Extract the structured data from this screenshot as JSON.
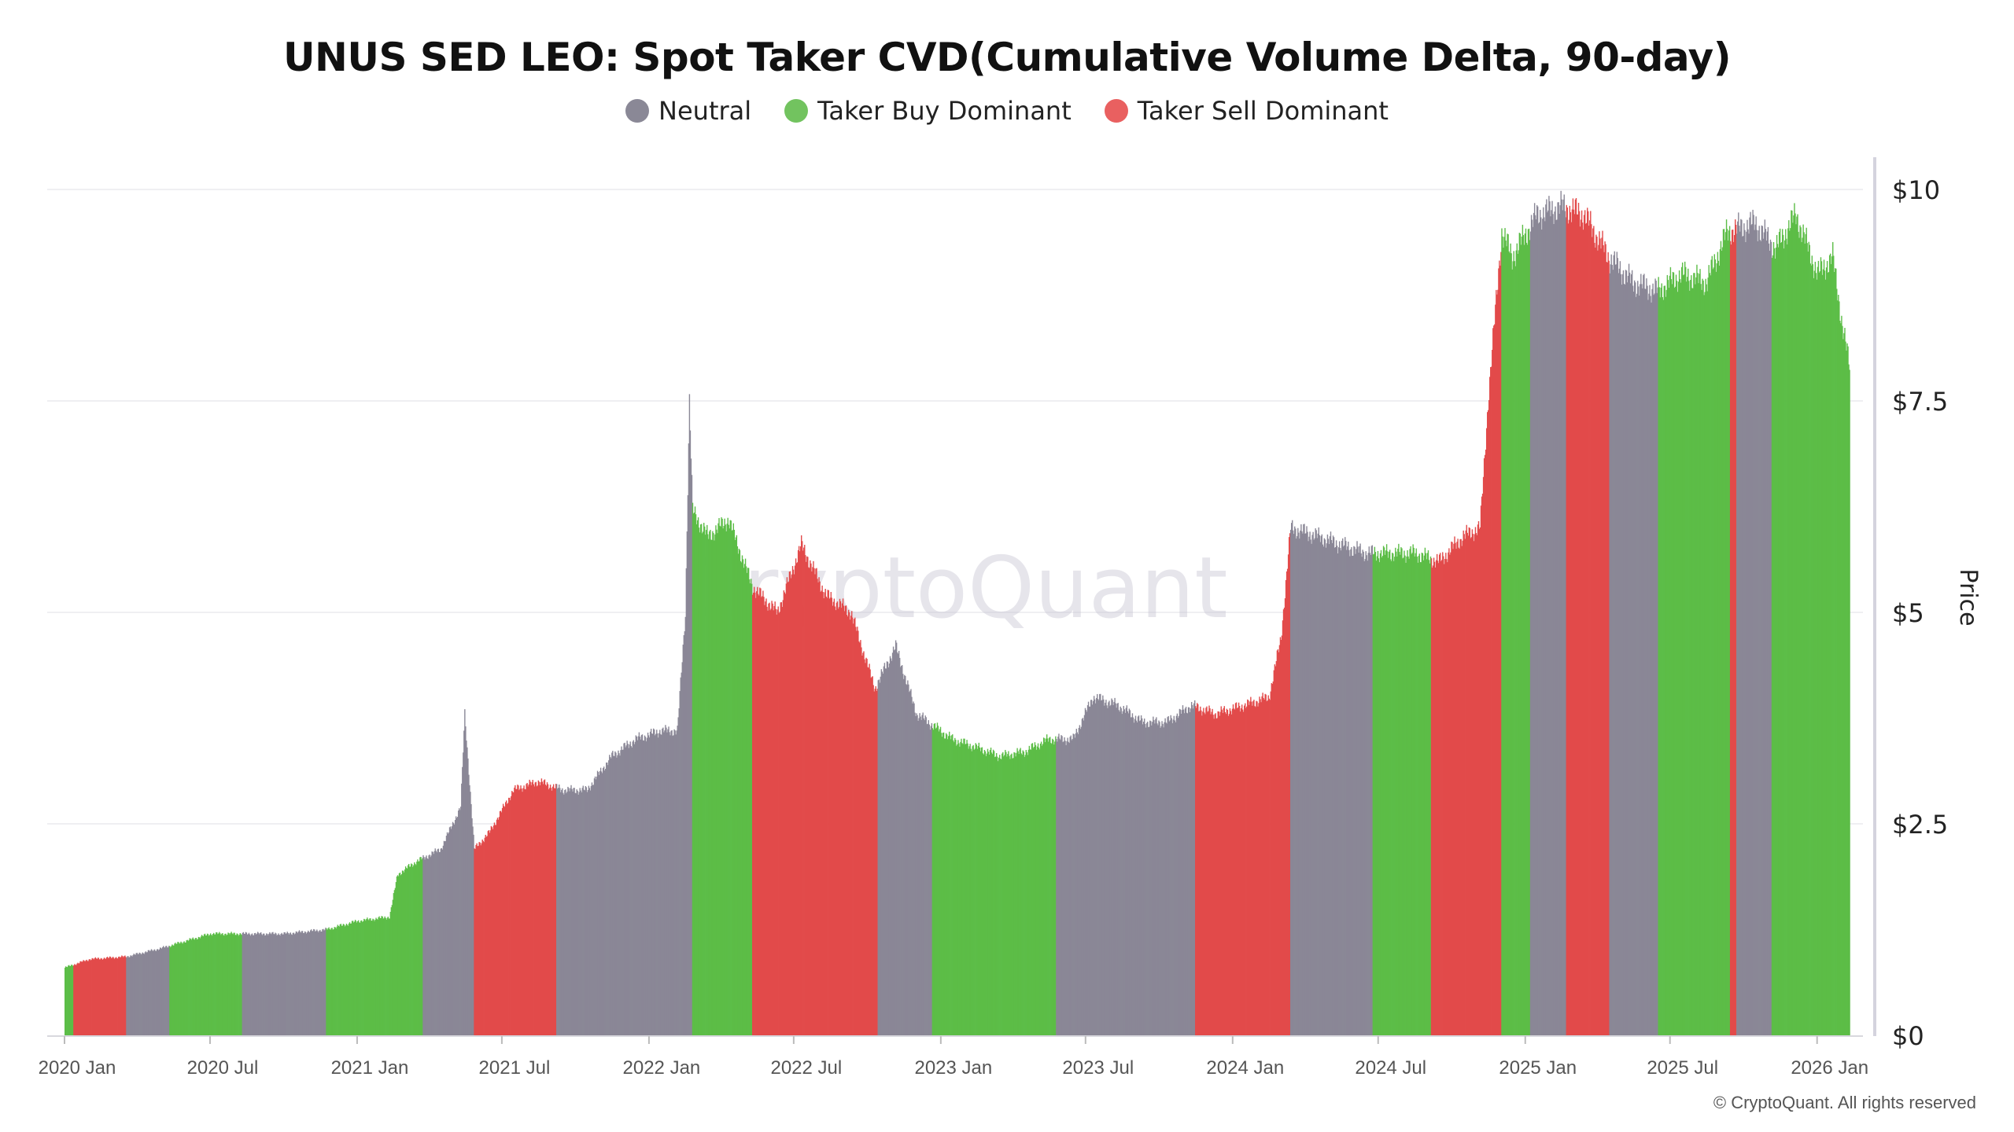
{
  "chart_data": {
    "type": "bar",
    "title": "UNUS SED LEO: Spot Taker CVD(Cumulative Volume Delta, 90-day)",
    "ylabel": "Price",
    "ylim": [
      0,
      10
    ],
    "yticks": [
      "$0",
      "$2.5",
      "$5",
      "$7.5",
      "$10"
    ],
    "ytick_values": [
      0,
      2.5,
      5,
      7.5,
      10
    ],
    "xticks": [
      "2020 Jan",
      "2020 Jul",
      "2021 Jan",
      "2021 Jul",
      "2022 Jan",
      "2022 Jul",
      "2023 Jan",
      "2023 Jul",
      "2024 Jan",
      "2024 Jul",
      "2025 Jan",
      "2025 Jul",
      "2026 Jan"
    ],
    "xtick_dates": [
      "2020-01-01",
      "2020-07-01",
      "2021-01-01",
      "2021-07-01",
      "2022-01-01",
      "2022-07-01",
      "2023-01-01",
      "2023-07-01",
      "2024-01-01",
      "2024-07-01",
      "2025-01-01",
      "2025-07-01",
      "2026-01-01"
    ],
    "grid": true,
    "legend_placement": "top-center",
    "legend": [
      {
        "name": "Neutral",
        "color": "#8a8896"
      },
      {
        "name": "Taker Buy Dominant",
        "color": "#72c35f"
      },
      {
        "name": "Taker Sell Dominant",
        "color": "#e96060"
      }
    ],
    "colors": {
      "neutral": "#8a8796",
      "buy": "#5cbd47",
      "sell": "#e24a4a"
    },
    "price": [
      [
        "2020-01-01",
        0.8
      ],
      [
        "2020-02-01",
        0.9
      ],
      [
        "2020-03-18",
        0.93
      ],
      [
        "2020-05-01",
        1.03
      ],
      [
        "2020-07-01",
        1.2
      ],
      [
        "2020-08-10",
        1.2
      ],
      [
        "2020-10-01",
        1.2
      ],
      [
        "2020-11-23",
        1.25
      ],
      [
        "2021-01-01",
        1.35
      ],
      [
        "2021-02-10",
        1.4
      ],
      [
        "2021-02-20",
        1.9
      ],
      [
        "2021-03-15",
        2.05
      ],
      [
        "2021-04-15",
        2.2
      ],
      [
        "2021-05-10",
        2.7
      ],
      [
        "2021-05-15",
        3.8
      ],
      [
        "2021-05-27",
        2.2
      ],
      [
        "2021-06-15",
        2.4
      ],
      [
        "2021-07-15",
        2.9
      ],
      [
        "2021-08-15",
        3.0
      ],
      [
        "2021-09-15",
        2.9
      ],
      [
        "2021-10-15",
        2.9
      ],
      [
        "2021-11-15",
        3.3
      ],
      [
        "2021-12-15",
        3.5
      ],
      [
        "2022-01-15",
        3.6
      ],
      [
        "2022-02-05",
        3.6
      ],
      [
        "2022-02-15",
        5.0
      ],
      [
        "2022-02-20",
        7.5
      ],
      [
        "2022-02-24",
        6.2
      ],
      [
        "2022-03-15",
        5.9
      ],
      [
        "2022-04-10",
        6.1
      ],
      [
        "2022-05-10",
        5.3
      ],
      [
        "2022-06-10",
        5.0
      ],
      [
        "2022-07-10",
        5.8
      ],
      [
        "2022-08-10",
        5.2
      ],
      [
        "2022-09-10",
        5.0
      ],
      [
        "2022-10-10",
        4.1
      ],
      [
        "2022-11-05",
        4.6
      ],
      [
        "2022-12-01",
        3.8
      ],
      [
        "2023-01-15",
        3.5
      ],
      [
        "2023-02-15",
        3.4
      ],
      [
        "2023-03-15",
        3.3
      ],
      [
        "2023-04-15",
        3.35
      ],
      [
        "2023-05-15",
        3.5
      ],
      [
        "2023-06-15",
        3.5
      ],
      [
        "2023-07-10",
        4.0
      ],
      [
        "2023-08-10",
        3.9
      ],
      [
        "2023-09-10",
        3.7
      ],
      [
        "2023-10-10",
        3.7
      ],
      [
        "2023-11-10",
        3.9
      ],
      [
        "2023-12-10",
        3.8
      ],
      [
        "2024-01-15",
        3.9
      ],
      [
        "2024-02-15",
        4.0
      ],
      [
        "2024-03-01",
        4.7
      ],
      [
        "2024-03-13",
        6.0
      ],
      [
        "2024-04-15",
        5.9
      ],
      [
        "2024-05-15",
        5.8
      ],
      [
        "2024-06-15",
        5.7
      ],
      [
        "2024-07-15",
        5.7
      ],
      [
        "2024-08-15",
        5.7
      ],
      [
        "2024-09-15",
        5.6
      ],
      [
        "2024-10-15",
        5.9
      ],
      [
        "2024-11-05",
        6.0
      ],
      [
        "2024-11-15",
        7.5
      ],
      [
        "2024-12-02",
        9.5
      ],
      [
        "2024-12-15",
        9.2
      ],
      [
        "2025-01-15",
        9.7
      ],
      [
        "2025-02-15",
        9.8
      ],
      [
        "2025-03-15",
        9.7
      ],
      [
        "2025-04-15",
        9.2
      ],
      [
        "2025-05-15",
        8.9
      ],
      [
        "2025-06-15",
        8.8
      ],
      [
        "2025-07-15",
        9.0
      ],
      [
        "2025-08-15",
        8.9
      ],
      [
        "2025-09-10",
        9.5
      ],
      [
        "2025-10-15",
        9.6
      ],
      [
        "2025-11-10",
        9.3
      ],
      [
        "2025-12-05",
        9.7
      ],
      [
        "2026-01-01",
        9.0
      ],
      [
        "2026-01-20",
        9.2
      ],
      [
        "2026-02-01",
        8.4
      ],
      [
        "2026-02-10",
        7.9
      ]
    ],
    "regimes": [
      [
        "2020-01-01",
        "2020-01-12",
        "buy"
      ],
      [
        "2020-01-12",
        "2020-03-18",
        "sell"
      ],
      [
        "2020-03-18",
        "2020-05-11",
        "neutral"
      ],
      [
        "2020-05-11",
        "2020-08-10",
        "buy"
      ],
      [
        "2020-08-10",
        "2020-11-23",
        "neutral"
      ],
      [
        "2020-11-23",
        "2021-03-24",
        "buy"
      ],
      [
        "2021-03-24",
        "2021-05-27",
        "neutral"
      ],
      [
        "2021-05-27",
        "2021-09-07",
        "sell"
      ],
      [
        "2021-09-07",
        "2022-02-24",
        "neutral"
      ],
      [
        "2022-02-24",
        "2022-05-10",
        "buy"
      ],
      [
        "2022-05-10",
        "2022-10-14",
        "sell"
      ],
      [
        "2022-10-14",
        "2022-12-21",
        "neutral"
      ],
      [
        "2022-12-21",
        "2023-05-25",
        "buy"
      ],
      [
        "2023-05-25",
        "2023-11-15",
        "neutral"
      ],
      [
        "2023-11-15",
        "2024-03-13",
        "sell"
      ],
      [
        "2024-03-13",
        "2024-06-24",
        "neutral"
      ],
      [
        "2024-06-24",
        "2024-09-05",
        "buy"
      ],
      [
        "2024-09-05",
        "2024-10-10",
        "sell"
      ],
      [
        "2024-10-10",
        "2024-12-02",
        "sell"
      ],
      [
        "2024-12-02",
        "2025-01-07",
        "buy"
      ],
      [
        "2025-01-07",
        "2025-02-21",
        "neutral"
      ],
      [
        "2025-02-21",
        "2025-04-16",
        "sell"
      ],
      [
        "2025-04-16",
        "2025-06-16",
        "neutral"
      ],
      [
        "2025-06-16",
        "2025-09-14",
        "buy"
      ],
      [
        "2025-09-14",
        "2025-09-22",
        "sell"
      ],
      [
        "2025-09-22",
        "2025-11-05",
        "neutral"
      ],
      [
        "2025-11-05",
        "2026-02-10",
        "buy"
      ]
    ]
  },
  "watermark": "CryptoQuant",
  "copyright": "© CryptoQuant. All rights reserved"
}
